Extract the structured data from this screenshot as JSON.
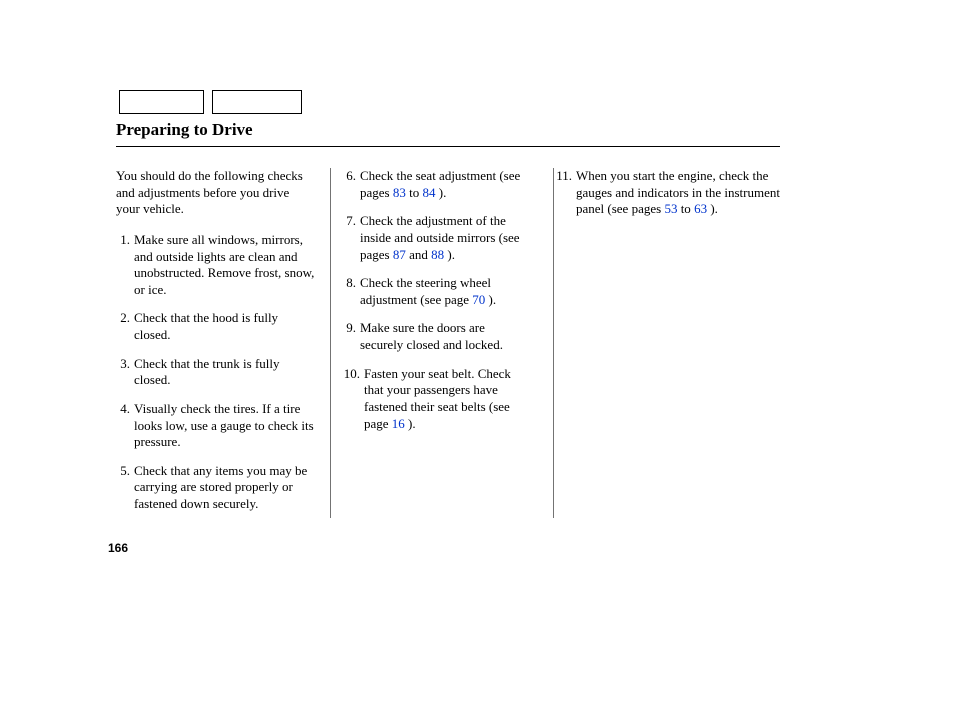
{
  "title": "Preparing to Drive",
  "page_number": "166",
  "link_color": "#0033cc",
  "col1": {
    "intro": "You should do the following checks and adjustments before you drive your vehicle.",
    "items": [
      {
        "n": "1.",
        "t": "Make sure all windows, mirrors, and outside lights are clean and unobstructed. Remove frost, snow, or ice."
      },
      {
        "n": "2.",
        "t": "Check that the hood is fully closed."
      },
      {
        "n": "3.",
        "t": "Check that the trunk is fully closed."
      },
      {
        "n": "4.",
        "t": "Visually check the tires. If a tire looks low, use a gauge to check its pressure."
      },
      {
        "n": "5.",
        "t": "Check that any items you may be carrying are stored properly or fastened down securely."
      }
    ]
  },
  "col2": {
    "items": [
      {
        "n": "6.",
        "pre": "Check the seat adjustment (see pages ",
        "l1": "83",
        "mid1": " to ",
        "l2": "84",
        "post": " )."
      },
      {
        "n": "7.",
        "pre": "Check the adjustment of the inside and outside mirrors (see pages ",
        "l1": "87",
        "mid1": "  and  ",
        "l2": "88",
        "post": "  )."
      },
      {
        "n": "8.",
        "pre": "Check the steering wheel adjustment (see page ",
        "l1": "70",
        "post": "   )."
      },
      {
        "n": "9.",
        "pre": "Make sure the doors are securely closed and locked."
      },
      {
        "n": "10.",
        "pre": "Fasten your seat belt. Check that your passengers have fastened their seat belts (see page ",
        "l1": "16",
        "post": " )."
      }
    ]
  },
  "col3": {
    "items": [
      {
        "n": "11.",
        "pre": "When you start the engine, check the gauges and indicators in the instrument panel (see pages ",
        "l1": "53",
        "mid1": " to ",
        "l2": "63",
        "post": " )."
      }
    ]
  }
}
